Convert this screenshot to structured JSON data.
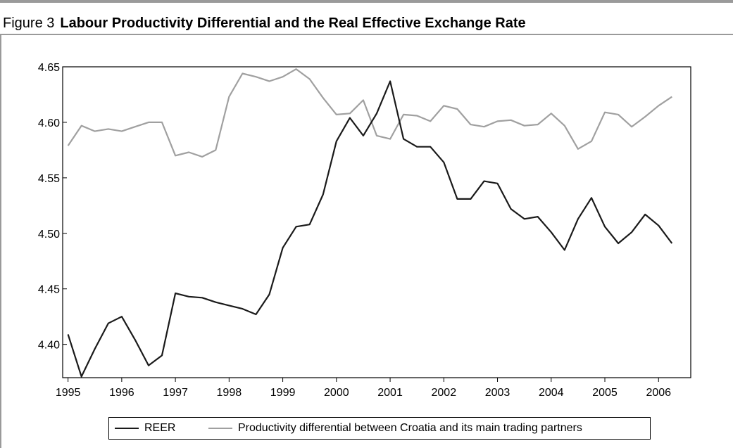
{
  "header": {
    "figure_label": "Figure 3",
    "title": "Labour Productivity Differential and the Real Effective Exchange Rate"
  },
  "colors": {
    "reer": "#1a1a1a",
    "productivity": "#a0a0a0",
    "frame_rule": "#9a9a9a"
  },
  "chart_data": {
    "type": "line",
    "title": "Labour Productivity Differential and the Real Effective Exchange Rate",
    "xlabel": "",
    "ylabel": "",
    "xlim": [
      1994.9,
      2006.6
    ],
    "ylim": [
      4.37,
      4.65
    ],
    "yticks": [
      "4.40",
      "4.45",
      "4.50",
      "4.55",
      "4.60",
      "4.65"
    ],
    "xticks": [
      "1995",
      "1996",
      "1997",
      "1998",
      "1999",
      "2000",
      "2001",
      "2002",
      "2003",
      "2004",
      "2005",
      "2006"
    ],
    "grid": false,
    "legend_position": "bottom",
    "x": [
      1995.0,
      1995.25,
      1995.5,
      1995.75,
      1996.0,
      1996.25,
      1996.5,
      1996.75,
      1997.0,
      1997.25,
      1997.5,
      1997.75,
      1998.0,
      1998.25,
      1998.5,
      1998.75,
      1999.0,
      1999.25,
      1999.5,
      1999.75,
      2000.0,
      2000.25,
      2000.5,
      2000.75,
      2001.0,
      2001.25,
      2001.5,
      2001.75,
      2002.0,
      2002.25,
      2002.5,
      2002.75,
      2003.0,
      2003.25,
      2003.5,
      2003.75,
      2004.0,
      2004.25,
      2004.5,
      2004.75,
      2005.0,
      2005.25,
      2005.5,
      2005.75,
      2006.0,
      2006.25
    ],
    "series": [
      {
        "name": "REER",
        "values": [
          4.409,
          4.371,
          4.396,
          4.419,
          4.425,
          4.404,
          4.381,
          4.39,
          4.446,
          4.443,
          4.442,
          4.438,
          4.435,
          4.432,
          4.427,
          4.445,
          4.487,
          4.506,
          4.508,
          4.535,
          4.583,
          4.604,
          4.588,
          4.608,
          4.637,
          4.585,
          4.578,
          4.578,
          4.564,
          4.531,
          4.531,
          4.547,
          4.545,
          4.522,
          4.513,
          4.515,
          4.501,
          4.485,
          4.513,
          4.532,
          4.506,
          4.491,
          4.501,
          4.517,
          4.507,
          4.491
        ]
      },
      {
        "name": "Productivity differential between Croatia and its main trading partners",
        "values": [
          4.579,
          4.597,
          4.592,
          4.594,
          4.592,
          4.596,
          4.6,
          4.6,
          4.57,
          4.573,
          4.569,
          4.575,
          4.623,
          4.644,
          4.641,
          4.637,
          4.641,
          4.648,
          4.639,
          4.622,
          4.607,
          4.608,
          4.62,
          4.588,
          4.585,
          4.607,
          4.606,
          4.601,
          4.615,
          4.612,
          4.598,
          4.596,
          4.601,
          4.602,
          4.597,
          4.598,
          4.608,
          4.597,
          4.576,
          4.583,
          4.609,
          4.607,
          4.596,
          4.605,
          4.615,
          4.623
        ]
      }
    ]
  }
}
